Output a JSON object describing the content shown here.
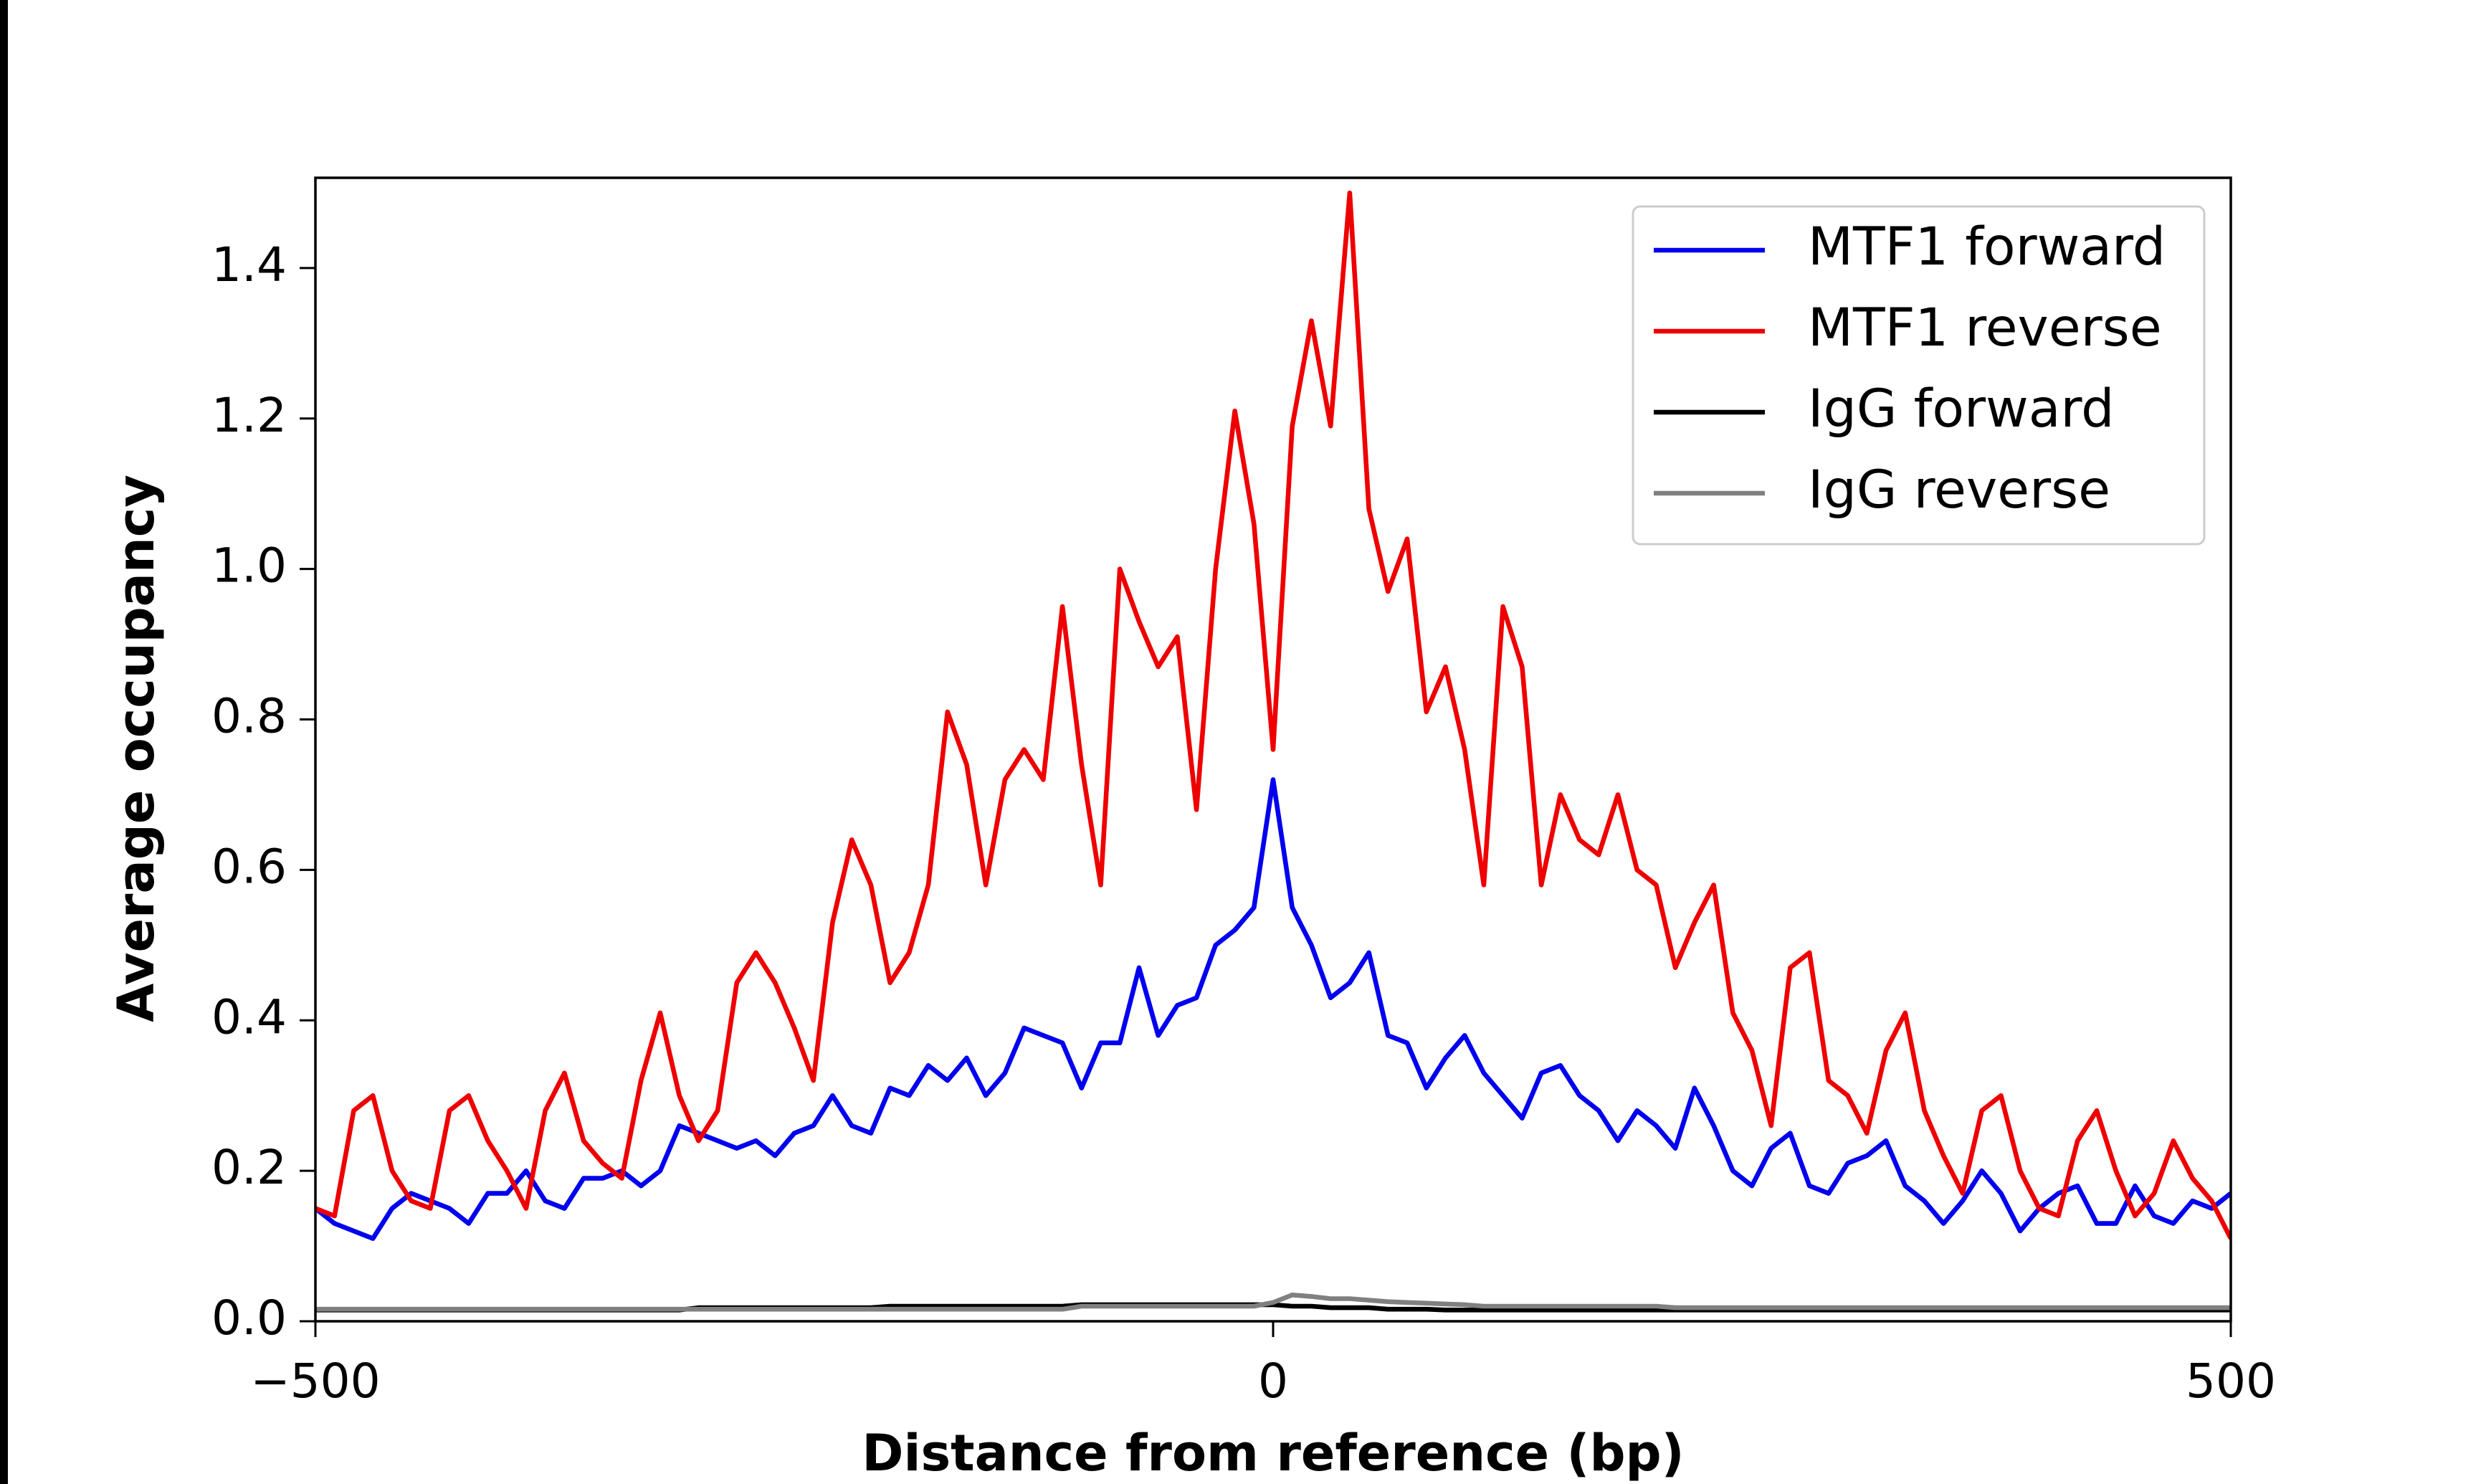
{
  "chart_data": {
    "type": "line",
    "xlabel": "Distance from reference (bp)",
    "ylabel": "Average occupancy",
    "x": [
      -500,
      -490,
      -480,
      -470,
      -460,
      -450,
      -440,
      -430,
      -420,
      -410,
      -400,
      -390,
      -380,
      -370,
      -360,
      -350,
      -340,
      -330,
      -320,
      -310,
      -300,
      -290,
      -280,
      -270,
      -260,
      -250,
      -240,
      -230,
      -220,
      -210,
      -200,
      -190,
      -180,
      -170,
      -160,
      -150,
      -140,
      -130,
      -120,
      -110,
      -100,
      -90,
      -80,
      -70,
      -60,
      -50,
      -40,
      -30,
      -20,
      -10,
      0,
      10,
      20,
      30,
      40,
      50,
      60,
      70,
      80,
      90,
      100,
      110,
      120,
      130,
      140,
      150,
      160,
      170,
      180,
      190,
      200,
      210,
      220,
      230,
      240,
      250,
      260,
      270,
      280,
      290,
      300,
      310,
      320,
      330,
      340,
      350,
      360,
      370,
      380,
      390,
      400,
      410,
      420,
      430,
      440,
      450,
      460,
      470,
      480,
      490,
      500
    ],
    "series": [
      {
        "name": "MTF1 forward",
        "color": "#0000ee",
        "values": [
          0.15,
          0.13,
          0.12,
          0.11,
          0.15,
          0.17,
          0.16,
          0.15,
          0.13,
          0.17,
          0.17,
          0.2,
          0.16,
          0.15,
          0.19,
          0.19,
          0.2,
          0.18,
          0.2,
          0.26,
          0.25,
          0.24,
          0.23,
          0.24,
          0.22,
          0.25,
          0.26,
          0.3,
          0.26,
          0.25,
          0.31,
          0.3,
          0.34,
          0.32,
          0.35,
          0.3,
          0.33,
          0.39,
          0.38,
          0.37,
          0.31,
          0.37,
          0.37,
          0.47,
          0.38,
          0.42,
          0.43,
          0.5,
          0.52,
          0.55,
          0.72,
          0.55,
          0.5,
          0.43,
          0.45,
          0.49,
          0.38,
          0.37,
          0.31,
          0.35,
          0.38,
          0.33,
          0.3,
          0.27,
          0.33,
          0.34,
          0.3,
          0.28,
          0.24,
          0.28,
          0.26,
          0.23,
          0.31,
          0.26,
          0.2,
          0.18,
          0.23,
          0.25,
          0.18,
          0.17,
          0.21,
          0.22,
          0.24,
          0.18,
          0.16,
          0.13,
          0.16,
          0.2,
          0.17,
          0.12,
          0.15,
          0.17,
          0.18,
          0.13,
          0.13,
          0.18,
          0.14,
          0.13,
          0.16,
          0.15,
          0.17
        ]
      },
      {
        "name": "MTF1 reverse",
        "color": "#ee0000",
        "values": [
          0.15,
          0.14,
          0.28,
          0.3,
          0.2,
          0.16,
          0.15,
          0.28,
          0.3,
          0.24,
          0.2,
          0.15,
          0.28,
          0.33,
          0.24,
          0.21,
          0.19,
          0.32,
          0.41,
          0.3,
          0.24,
          0.28,
          0.45,
          0.49,
          0.45,
          0.39,
          0.32,
          0.53,
          0.64,
          0.58,
          0.45,
          0.49,
          0.58,
          0.81,
          0.74,
          0.58,
          0.72,
          0.76,
          0.72,
          0.95,
          0.74,
          0.58,
          1.0,
          0.93,
          0.87,
          0.91,
          0.68,
          1.0,
          1.21,
          1.06,
          0.76,
          1.19,
          1.33,
          1.19,
          1.5,
          1.08,
          0.97,
          1.04,
          0.81,
          0.87,
          0.76,
          0.58,
          0.95,
          0.87,
          0.58,
          0.7,
          0.64,
          0.62,
          0.7,
          0.6,
          0.58,
          0.47,
          0.53,
          0.58,
          0.41,
          0.36,
          0.26,
          0.47,
          0.49,
          0.32,
          0.3,
          0.25,
          0.36,
          0.41,
          0.28,
          0.22,
          0.17,
          0.28,
          0.3,
          0.2,
          0.15,
          0.14,
          0.24,
          0.28,
          0.2,
          0.14,
          0.17,
          0.24,
          0.19,
          0.16,
          0.11
        ]
      },
      {
        "name": "IgG forward",
        "color": "#000000",
        "values": [
          0.015,
          0.015,
          0.015,
          0.015,
          0.015,
          0.015,
          0.015,
          0.015,
          0.015,
          0.015,
          0.015,
          0.015,
          0.015,
          0.015,
          0.015,
          0.015,
          0.015,
          0.015,
          0.015,
          0.015,
          0.018,
          0.018,
          0.018,
          0.018,
          0.018,
          0.018,
          0.018,
          0.018,
          0.018,
          0.018,
          0.02,
          0.02,
          0.02,
          0.02,
          0.02,
          0.02,
          0.02,
          0.02,
          0.02,
          0.02,
          0.022,
          0.022,
          0.022,
          0.022,
          0.022,
          0.022,
          0.022,
          0.022,
          0.022,
          0.022,
          0.022,
          0.02,
          0.02,
          0.018,
          0.018,
          0.018,
          0.016,
          0.016,
          0.016,
          0.015,
          0.015,
          0.015,
          0.015,
          0.015,
          0.015,
          0.015,
          0.015,
          0.015,
          0.015,
          0.015,
          0.015,
          0.015,
          0.015,
          0.015,
          0.015,
          0.015,
          0.015,
          0.015,
          0.015,
          0.015,
          0.015,
          0.015,
          0.015,
          0.015,
          0.015,
          0.015,
          0.015,
          0.015,
          0.015,
          0.015,
          0.015,
          0.015,
          0.015,
          0.015,
          0.015,
          0.015,
          0.015,
          0.015,
          0.015,
          0.015,
          0.015
        ]
      },
      {
        "name": "IgG reverse",
        "color": "#808080",
        "values": [
          0.016,
          0.016,
          0.016,
          0.016,
          0.016,
          0.016,
          0.016,
          0.016,
          0.016,
          0.016,
          0.016,
          0.016,
          0.016,
          0.016,
          0.016,
          0.016,
          0.016,
          0.016,
          0.016,
          0.016,
          0.016,
          0.016,
          0.016,
          0.016,
          0.016,
          0.016,
          0.016,
          0.016,
          0.016,
          0.016,
          0.016,
          0.016,
          0.016,
          0.016,
          0.016,
          0.016,
          0.016,
          0.016,
          0.016,
          0.016,
          0.02,
          0.02,
          0.02,
          0.02,
          0.02,
          0.02,
          0.02,
          0.02,
          0.02,
          0.02,
          0.025,
          0.035,
          0.033,
          0.03,
          0.03,
          0.028,
          0.026,
          0.025,
          0.024,
          0.023,
          0.022,
          0.02,
          0.02,
          0.02,
          0.02,
          0.02,
          0.02,
          0.02,
          0.02,
          0.02,
          0.02,
          0.018,
          0.018,
          0.018,
          0.018,
          0.018,
          0.018,
          0.018,
          0.018,
          0.018,
          0.018,
          0.018,
          0.018,
          0.018,
          0.018,
          0.018,
          0.018,
          0.018,
          0.018,
          0.018,
          0.018,
          0.018,
          0.018,
          0.018,
          0.018,
          0.018,
          0.018,
          0.018,
          0.018,
          0.018,
          0.018
        ]
      }
    ],
    "xlim": [
      -500,
      500
    ],
    "xticks": [
      {
        "value": -500,
        "label": "−500"
      },
      0,
      500
    ],
    "ylim": [
      0,
      1.52
    ],
    "yticks": [
      {
        "value": 0,
        "label": "0.0"
      },
      0.2,
      0.4,
      0.6,
      0.8,
      {
        "value": 1,
        "label": "1.0"
      },
      1.2,
      1.4
    ],
    "legend": "upper right",
    "grid": false
  }
}
